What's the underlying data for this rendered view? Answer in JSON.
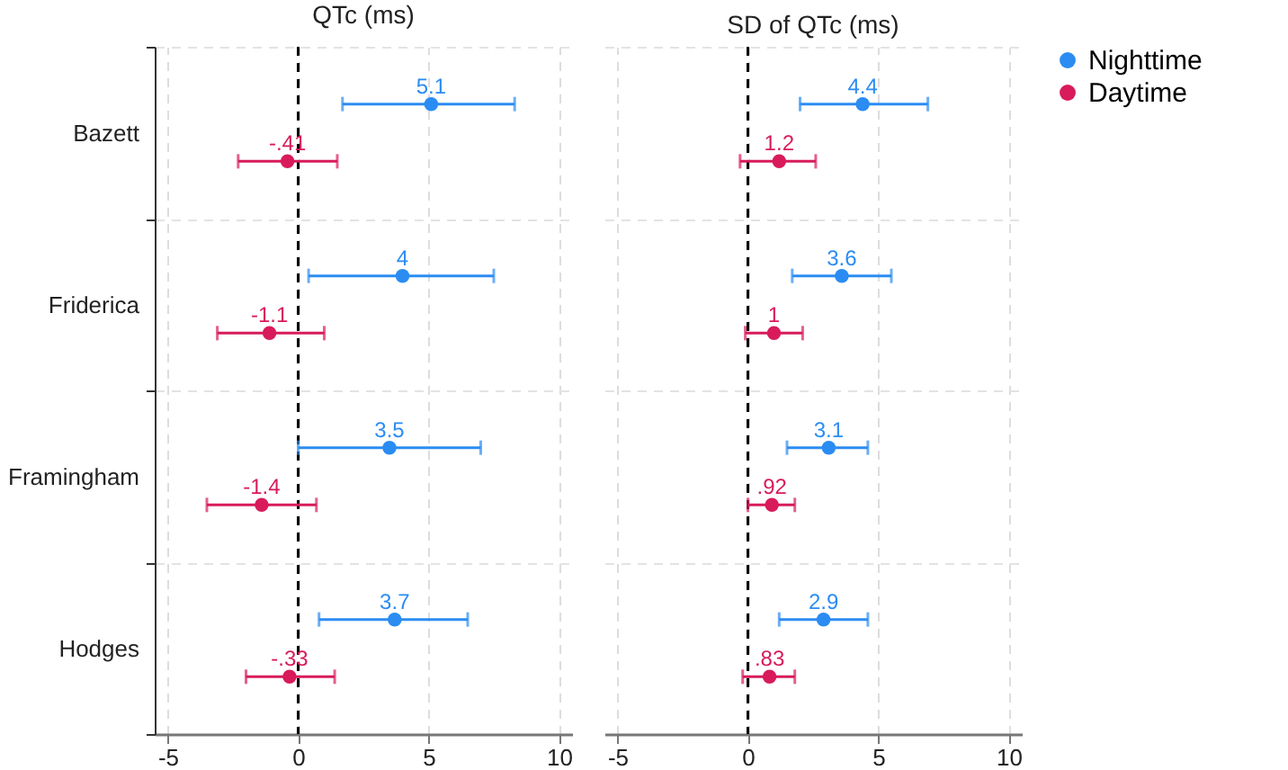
{
  "chart_data": [
    {
      "type": "scatter",
      "orientation": "horizontal",
      "title": "QTc (ms)",
      "categories": [
        "Bazett",
        "Friderica",
        "Framingham",
        "Hodges"
      ],
      "marker": "circle",
      "series": [
        {
          "color": "#2b8cf2",
          "values": [
            5.1,
            4,
            3.5,
            3.7
          ],
          "value_labels": [
            "5.1",
            "4",
            "3.5",
            "3.7"
          ],
          "errors": [
            [
              1.7,
              8.3
            ],
            [
              0.4,
              7.5
            ],
            [
              0,
              7.0
            ],
            [
              0.8,
              6.5
            ]
          ]
        },
        {
          "color": "#d81b5a",
          "values": [
            -0.41,
            -1.1,
            -1.4,
            -0.33
          ],
          "value_labels": [
            "-.41",
            "-1.1",
            "-1.4",
            "-.33"
          ],
          "errors": [
            [
              -2.3,
              1.5
            ],
            [
              -3.1,
              1.0
            ],
            [
              -3.5,
              0.7
            ],
            [
              -2.0,
              1.4
            ]
          ]
        }
      ],
      "xlim": [
        -5.5,
        10.5
      ],
      "xticks": [
        -5,
        0,
        5,
        10
      ],
      "grid": true,
      "legend": false,
      "ref_lines": [
        {
          "axis": "x",
          "value": 0,
          "color": "#000000",
          "line_style": "dashed"
        }
      ]
    },
    {
      "type": "scatter",
      "orientation": "horizontal",
      "title": "SD of QTc (ms)",
      "categories": [
        null,
        null,
        null,
        null
      ],
      "marker": "circle",
      "series": [
        {
          "name": "Nighttime",
          "color": "#2b8cf2",
          "values": [
            4.4,
            3.6,
            3.1,
            2.9
          ],
          "value_labels": [
            "4.4",
            "3.6",
            "3.1",
            "2.9"
          ],
          "errors": [
            [
              2.0,
              6.9
            ],
            [
              1.7,
              5.5
            ],
            [
              1.5,
              4.6
            ],
            [
              1.2,
              4.6
            ]
          ]
        },
        {
          "name": "Daytime",
          "color": "#d81b5a",
          "values": [
            1.2,
            1,
            0.92,
            0.83
          ],
          "value_labels": [
            "1.2",
            "1",
            ".92",
            ".83"
          ],
          "errors": [
            [
              -0.3,
              2.6
            ],
            [
              -0.1,
              2.1
            ],
            [
              0,
              1.8
            ],
            [
              -0.2,
              1.8
            ]
          ]
        }
      ],
      "xlim": [
        -5.5,
        10.5
      ],
      "xticks": [
        -5,
        0,
        5,
        10
      ],
      "grid": true,
      "legend": "right",
      "tick_labels": "x",
      "ref_lines": [
        {
          "axis": "x",
          "value": 0,
          "color": "#000000",
          "line_style": "dashed"
        }
      ]
    }
  ]
}
